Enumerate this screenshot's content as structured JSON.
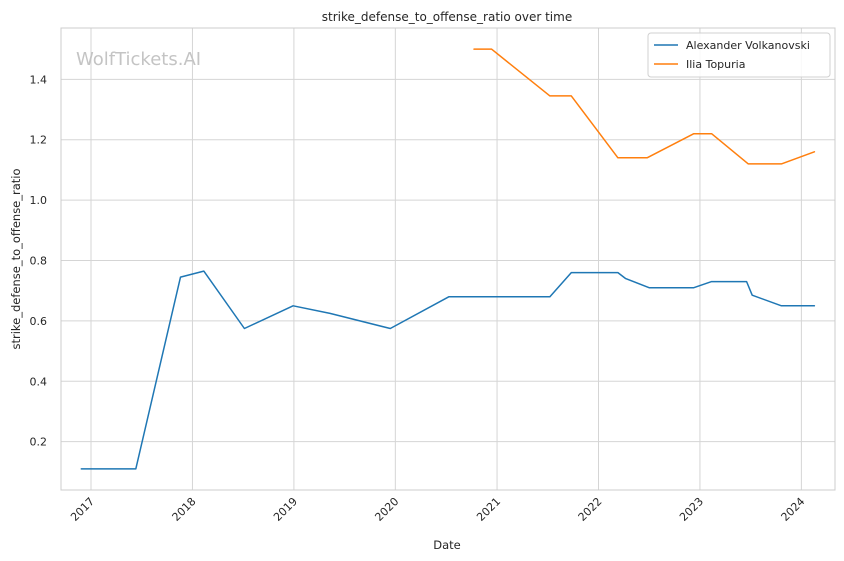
{
  "chart_data": {
    "type": "line",
    "title": "strike_defense_to_offense_ratio over time",
    "xlabel": "Date",
    "ylabel": "strike_defense_to_offense_ratio",
    "watermark": "WolfTickets.AI",
    "xlim": [
      "2016-09-15",
      "2024-05-01"
    ],
    "ylim": [
      0.04,
      1.57
    ],
    "x_ticks": [
      "2017",
      "2018",
      "2019",
      "2020",
      "2021",
      "2022",
      "2023",
      "2024"
    ],
    "y_ticks": [
      "0.2",
      "0.4",
      "0.6",
      "0.8",
      "1.0",
      "1.2",
      "1.4"
    ],
    "grid": true,
    "legend_position": "top-right",
    "series": [
      {
        "name": "Alexander Volkanovski",
        "color": "#1f77b4",
        "x": [
          "2016-11-27",
          "2017-06-11",
          "2017-11-19",
          "2018-02-11",
          "2018-07-07",
          "2018-12-29",
          "2019-05-11",
          "2019-12-14",
          "2020-07-12",
          "2021-07-10",
          "2021-09-25",
          "2022-03-12",
          "2022-04-09",
          "2022-07-02",
          "2022-12-10",
          "2023-02-12",
          "2023-06-18",
          "2023-07-08",
          "2023-10-21",
          "2024-02-17"
        ],
        "values": [
          0.11,
          0.11,
          0.745,
          0.765,
          0.575,
          0.65,
          0.625,
          0.575,
          0.68,
          0.68,
          0.76,
          0.76,
          0.74,
          0.71,
          0.71,
          0.73,
          0.73,
          0.685,
          0.65,
          0.65
        ]
      },
      {
        "name": "Ilia Topuria",
        "color": "#ff7f0e",
        "x": [
          "2020-10-10",
          "2020-12-12",
          "2021-07-10",
          "2021-09-25",
          "2022-03-12",
          "2022-06-25",
          "2022-12-10",
          "2023-02-12",
          "2023-06-24",
          "2023-10-21",
          "2024-02-17"
        ],
        "values": [
          1.5,
          1.5,
          1.345,
          1.345,
          1.14,
          1.14,
          1.22,
          1.22,
          1.12,
          1.12,
          1.16
        ]
      }
    ]
  }
}
